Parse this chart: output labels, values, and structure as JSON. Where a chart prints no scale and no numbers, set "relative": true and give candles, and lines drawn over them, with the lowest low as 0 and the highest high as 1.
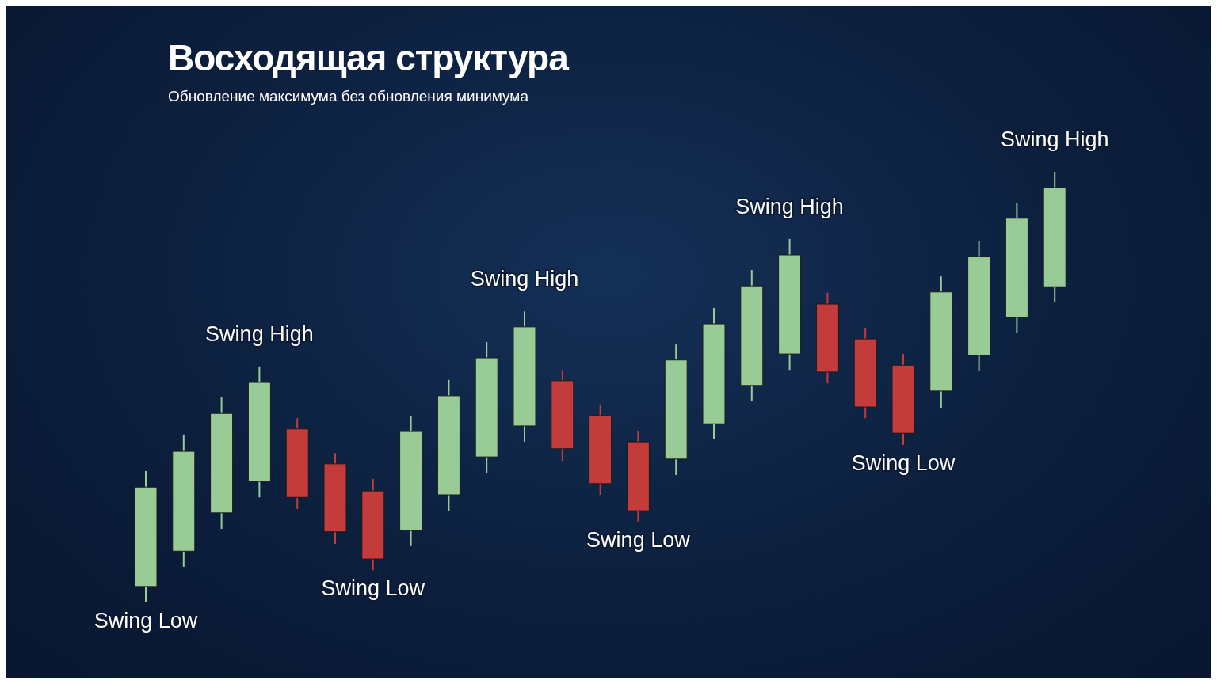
{
  "chart_data": {
    "type": "candlestick",
    "title": "Восходящая структура",
    "subtitle": "Обновление максимума без обновления минимума",
    "relative": true,
    "categories": [
      null,
      null,
      null,
      null,
      null,
      null,
      null,
      null,
      null,
      null,
      null,
      null,
      null,
      null,
      null,
      null,
      null,
      null,
      null,
      null,
      null,
      null,
      null,
      null,
      null
    ],
    "ohlc": [
      [
        0.037,
        0.305,
        0,
        0.268
      ],
      [
        0.119,
        0.39,
        0.083,
        0.351
      ],
      [
        0.208,
        0.476,
        0.171,
        0.439
      ],
      [
        0.281,
        0.548,
        0.244,
        0.511
      ],
      [
        0.403,
        0.428,
        0.217,
        0.244
      ],
      [
        0.322,
        0.347,
        0.136,
        0.164
      ],
      [
        0.259,
        0.287,
        0.075,
        0.101
      ],
      [
        0.167,
        0.434,
        0.131,
        0.397
      ],
      [
        0.25,
        0.517,
        0.213,
        0.48
      ],
      [
        0.338,
        0.605,
        0.301,
        0.568
      ],
      [
        0.41,
        0.676,
        0.373,
        0.64
      ],
      [
        0.515,
        0.54,
        0.329,
        0.357
      ],
      [
        0.434,
        0.46,
        0.25,
        0.276
      ],
      [
        0.373,
        0.399,
        0.188,
        0.213
      ],
      [
        0.333,
        0.599,
        0.296,
        0.563
      ],
      [
        0.415,
        0.684,
        0.379,
        0.647
      ],
      [
        0.504,
        0.772,
        0.467,
        0.735
      ],
      [
        0.577,
        0.844,
        0.54,
        0.807
      ],
      [
        0.693,
        0.719,
        0.509,
        0.535
      ],
      [
        0.612,
        0.638,
        0.428,
        0.454
      ],
      [
        0.551,
        0.577,
        0.366,
        0.393
      ],
      [
        0.491,
        0.757,
        0.452,
        0.721
      ],
      [
        0.574,
        0.84,
        0.537,
        0.803
      ],
      [
        0.662,
        0.928,
        0.625,
        0.892
      ],
      [
        0.733,
        1,
        0.697,
        0.963
      ]
    ],
    "colors": [
      "#98cb96",
      "#98cb96",
      "#98cb96",
      "#98cb96",
      "#c43b3b",
      "#c43b3b",
      "#c43b3b",
      "#98cb96",
      "#98cb96",
      "#98cb96",
      "#98cb96",
      "#c43b3b",
      "#c43b3b",
      "#c43b3b",
      "#98cb96",
      "#98cb96",
      "#98cb96",
      "#98cb96",
      "#c43b3b",
      "#c43b3b",
      "#c43b3b",
      "#98cb96",
      "#98cb96",
      "#98cb96",
      "#98cb96"
    ],
    "annotations": [
      {
        "text": "Swing Low",
        "y": 0
      },
      {
        "text": "Swing High",
        "y": 0.548
      },
      {
        "text": "Swing Low",
        "y": 0.075
      },
      {
        "text": "Swing High",
        "y": 0.676
      },
      {
        "text": "Swing Low",
        "y": 0.188
      },
      {
        "text": "Swing High",
        "y": 0.844
      },
      {
        "text": "Swing Low",
        "y": 0.366
      },
      {
        "text": "Swing High",
        "y": 1
      }
    ]
  }
}
